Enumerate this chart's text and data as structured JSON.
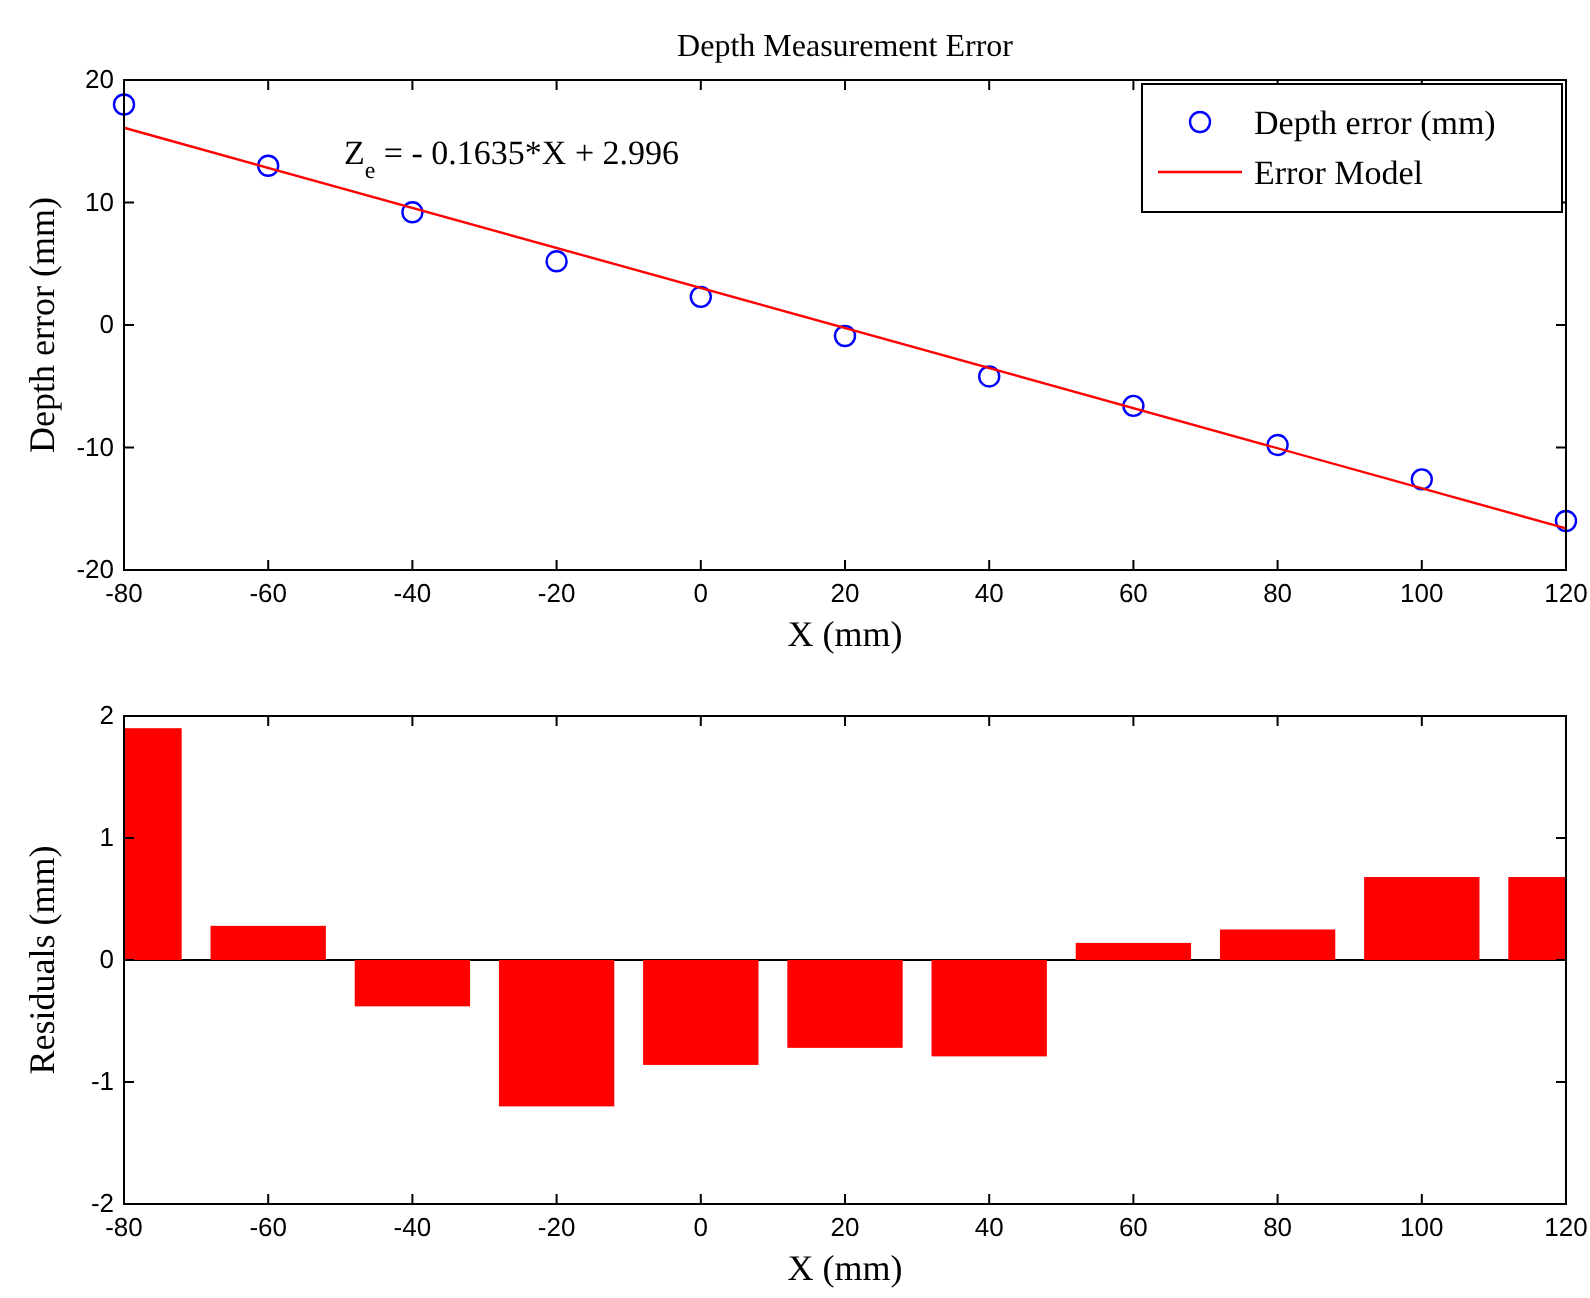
{
  "chart_data": [
    {
      "type": "scatter",
      "title": "Depth Measurement Error",
      "xlabel": "X (mm)",
      "ylabel": "Depth error (mm)",
      "xlim": [
        -80,
        120
      ],
      "ylim": [
        -20,
        20
      ],
      "xticks": [
        -80,
        -60,
        -40,
        -20,
        0,
        20,
        40,
        60,
        80,
        100,
        120
      ],
      "yticks": [
        -20,
        -10,
        0,
        10,
        20
      ],
      "grid": false,
      "legend": "top right",
      "annotations": [
        "Z$_{e}$ = - 0.1635*X + 2.996"
      ],
      "series": [
        {
          "name": "Depth error (mm)",
          "marker": "circle",
          "color": "#0000ff",
          "x": [
            -80,
            -60,
            -40,
            -20,
            0,
            20,
            40,
            60,
            80,
            100,
            120
          ],
          "values": [
            18,
            13,
            9.2,
            5.2,
            2.3,
            -0.9,
            -4.2,
            -6.6,
            -9.8,
            -12.6,
            -16
          ]
        },
        {
          "name": "Error Model",
          "type": "line",
          "color": "#ff0000",
          "line_style": "solid",
          "marker": "none",
          "x": [
            -80,
            120
          ],
          "values": [
            16.1,
            -16.6
          ]
        }
      ]
    },
    {
      "type": "bar",
      "xlabel": "X (mm)",
      "ylabel": "Residuals (mm)",
      "xlim": [
        -80,
        120
      ],
      "ylim": [
        -2,
        2
      ],
      "xticks": [
        -80,
        -60,
        -40,
        -20,
        0,
        20,
        40,
        60,
        80,
        100,
        120
      ],
      "yticks": [
        -2,
        -1,
        0,
        1,
        2
      ],
      "grid": false,
      "legend": false,
      "ref_lines": [
        {
          "axis": "y",
          "value": 0,
          "color": "#000000"
        }
      ],
      "x": [
        -80,
        -60,
        -40,
        -20,
        0,
        20,
        40,
        60,
        80,
        100,
        120
      ],
      "series": [
        {
          "color": "#ff0000",
          "values": [
            1.9,
            0.28,
            -0.38,
            -1.2,
            -0.86,
            -0.72,
            -0.79,
            0.14,
            0.25,
            0.68,
            0.68
          ]
        }
      ]
    }
  ]
}
